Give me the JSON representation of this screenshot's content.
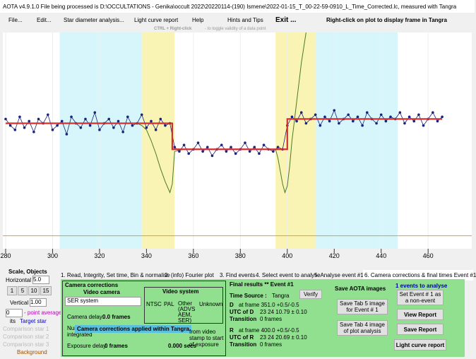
{
  "window": {
    "title": "AOTA v4.9.1.0   File being processed is D:\\OCCULTATIONS - Genika\\occult 2022\\20220114-(190) Ismene\\2022-01-15_T_00-22-59-0910_L_Time_Corrected.lc, measured with Tangra"
  },
  "menu": [
    "File...",
    "Edit...",
    "Star diameter analysis...",
    "Light curve report",
    "Help",
    "Hints and Tips",
    "Exit ..."
  ],
  "menu_hint": "Right-click on plot to display frame in Tangra",
  "plot_hint": {
    "key": "CTRL + Right-click",
    "text": "- to toggle validity of a data point"
  },
  "chart_data": {
    "type": "line",
    "x": [
      280,
      282,
      284,
      286,
      288,
      290,
      292,
      294,
      296,
      298,
      300,
      302,
      304,
      306,
      308,
      310,
      312,
      314,
      316,
      318,
      320,
      322,
      324,
      326,
      328,
      330,
      332,
      334,
      336,
      338,
      340,
      342,
      344,
      346,
      348,
      350,
      352,
      354,
      356,
      358,
      360,
      362,
      364,
      366,
      368,
      370,
      372,
      374,
      376,
      378,
      380,
      382,
      384,
      386,
      388,
      390,
      392,
      394,
      396,
      398,
      400,
      402,
      404,
      406,
      408,
      410,
      412,
      414,
      416,
      418,
      420,
      422,
      424,
      426,
      428,
      430,
      432,
      434,
      436,
      438,
      440,
      442,
      444,
      446,
      448,
      450,
      452,
      454,
      456,
      458,
      460,
      462,
      464,
      466
    ],
    "series": [
      {
        "color": "#1a237e",
        "values": [
          60,
          57,
          55,
          61,
          56,
          59,
          54,
          60,
          58,
          62,
          55,
          57,
          59,
          53,
          61,
          58,
          56,
          60,
          57,
          63,
          55,
          58,
          60,
          56,
          59,
          54,
          61,
          57,
          58,
          62,
          56,
          59,
          55,
          60,
          57,
          58,
          47,
          45,
          48,
          44,
          46,
          49,
          45,
          47,
          43,
          46,
          48,
          45,
          47,
          44,
          46,
          49,
          45,
          47,
          44,
          48,
          46,
          45,
          47,
          46,
          57,
          61,
          59,
          63,
          58,
          60,
          62,
          57,
          61,
          59,
          64,
          58,
          60,
          62,
          59,
          61,
          57,
          63,
          60,
          58,
          62,
          59,
          61,
          60,
          63,
          58,
          61,
          59,
          62,
          57,
          60,
          63,
          59,
          61
        ]
      }
    ],
    "fit_line": {
      "color": "#d32f2f",
      "x": [
        280,
        351,
        351,
        400,
        400,
        466
      ],
      "values": [
        58,
        58,
        46,
        46,
        60,
        60
      ]
    },
    "model_line": {
      "color": "#4a7a2a",
      "x": [
        336,
        338,
        340,
        342,
        344,
        346,
        348,
        350,
        351,
        352,
        356,
        395,
        396,
        397,
        398,
        399,
        400,
        401,
        402,
        404,
        406,
        408
      ],
      "values": [
        58,
        57,
        55,
        50,
        44,
        37,
        31,
        26,
        30,
        45,
        46,
        46,
        42,
        36,
        30,
        26,
        29,
        38,
        50,
        68,
        86,
        100
      ]
    },
    "reference_line": {
      "color": "#e0a020",
      "value": 6
    },
    "regions": [
      {
        "color": "#d6f6fb",
        "x": [
          303,
          338
        ]
      },
      {
        "color": "#d6f6fb",
        "x": [
          412,
          447
        ]
      },
      {
        "color": "#faf4b4",
        "x": [
          338,
          352
        ]
      },
      {
        "color": "#faf4b4",
        "x": [
          395,
          412
        ]
      }
    ],
    "xlim": [
      278.8,
      478.6
    ],
    "ylim": [
      0,
      100
    ],
    "xticks": [
      280,
      300,
      320,
      340,
      360,
      380,
      400,
      420,
      440,
      460
    ]
  },
  "left_panel": {
    "title": "Scale,  Objects",
    "horizontal": "Horizontal",
    "h_value": "5.0",
    "h_buttons": [
      "1",
      "5",
      "10",
      "15"
    ],
    "vertical": "Vertical",
    "v_value": "1.00",
    "avg_value": "0",
    "avg_label": "- point average",
    "its": "its",
    "objects": [
      "Target star",
      "Comparison star 1",
      "Comparison star 2",
      "Comparison star 3",
      "Background"
    ]
  },
  "tabs": [
    "1. Read, Integrity, Set time, Bin & normalise",
    "2. (info) Fourier plot",
    "3. Find events",
    "4. Select event to analyse",
    "5. Analyse event #1",
    "6. Camera corrections & final times Event #1"
  ],
  "camera": {
    "title": "Camera corrections",
    "video_camera": "Video camera",
    "camera_select": "SER system",
    "camera_delay_label": "Camera delay:",
    "camera_delay": "0.0 frames",
    "video_system": "Video system",
    "systems": [
      "NTSC",
      "PAL",
      "Other (ADVS AEM, SER)",
      "Unknown"
    ],
    "applied": "Camera corrections applied within Tangra",
    "frames_integrated": "Num frames integrated",
    "stamp_note": "from video stamp to start of exposure",
    "stamp_value": "0.000 secs",
    "exposure_label": "Exposure delay:",
    "exposure_value": "0 frames"
  },
  "results": {
    "title": "Final results  **  Event #1",
    "time_source_label": "Time Source :",
    "time_source": "Tangra",
    "verify": "Verify",
    "d": {
      "label": "D",
      "frame": "at frame 351.0 +0.5/-0.5",
      "utc_label": "UTC of D",
      "utc": "23 24 10.79  ± 0.10",
      "transition_label": "Transition",
      "transition": "0 frames"
    },
    "r": {
      "label": "R",
      "frame": "at frame 400.0 +0.5/-0.5",
      "utc_label": "UTC of R",
      "utc": "23 24 20.69  ± 0.10",
      "transition_label": "Transition",
      "transition": "0 frames"
    }
  },
  "save": {
    "title": "Save AOTA images",
    "tab5": "Save Tab 5 image for Event # 1",
    "tab4": "Save Tab 4 image of plot analysis"
  },
  "actions": {
    "title": "1  events to analyse",
    "non_event": "Set Event # 1 as a non-event",
    "view": "View Report",
    "save": "Save Report",
    "lc": "Light curve report"
  }
}
